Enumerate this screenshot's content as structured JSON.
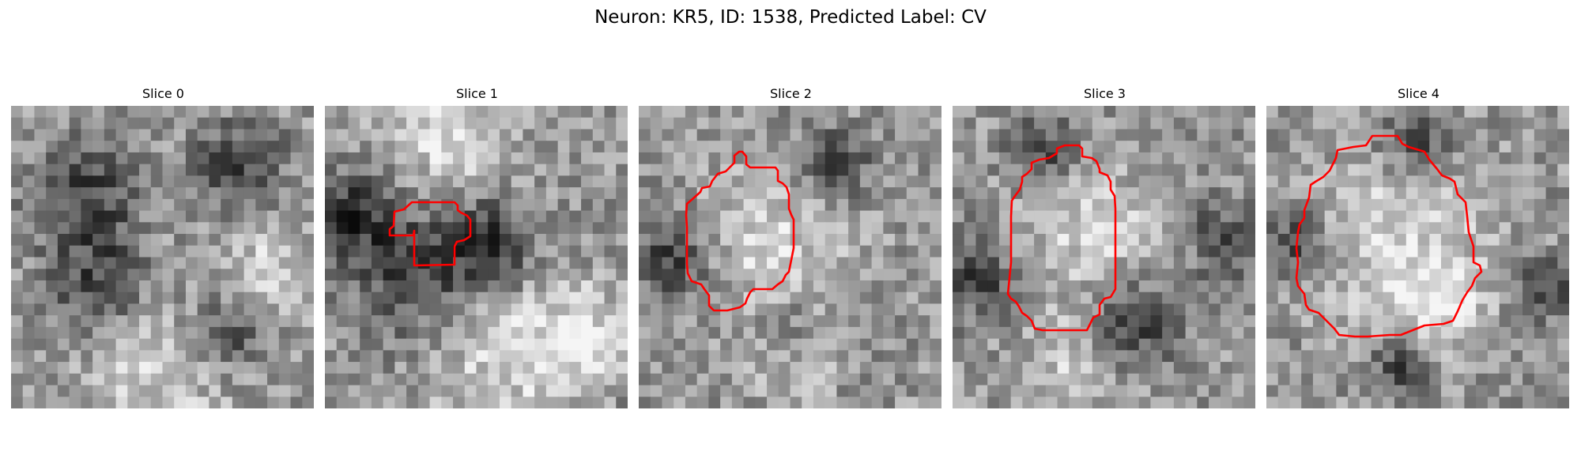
{
  "figure": {
    "title": "Neuron: KR5, ID: 1538, Predicted Label: CV",
    "contour_color": "#ff0000",
    "colormap": "grayscale",
    "grid_size": 26
  },
  "panels": [
    {
      "title": "Slice 0",
      "has_contour": false
    },
    {
      "title": "Slice 1",
      "has_contour": true
    },
    {
      "title": "Slice 2",
      "has_contour": true
    },
    {
      "title": "Slice 3",
      "has_contour": true
    },
    {
      "title": "Slice 4",
      "has_contour": true
    }
  ]
}
